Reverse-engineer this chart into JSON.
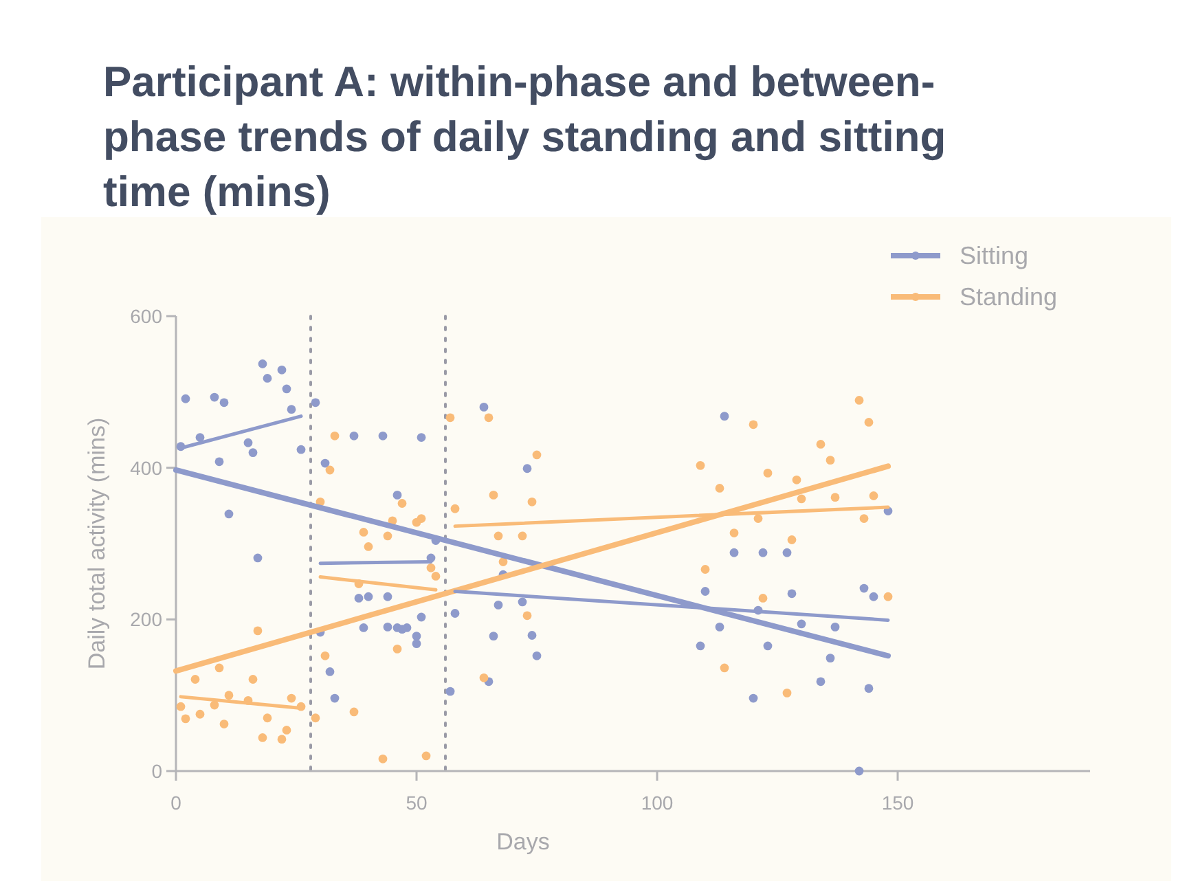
{
  "chart_data": {
    "type": "scatter",
    "title": "Participant A: within-phase and between-phase trends of daily standing and sitting time (mins)",
    "xlabel": "Days",
    "ylabel": "Daily total activity (mins)",
    "xlim": [
      0,
      190
    ],
    "ylim": [
      0,
      600
    ],
    "xticks": [
      0,
      50,
      100,
      150
    ],
    "yticks": [
      0,
      200,
      400,
      600
    ],
    "grid": false,
    "legend": "top right",
    "series": [
      {
        "name": "Sitting",
        "color": "#8e9acb",
        "marker": "circle",
        "x": [
          1,
          2,
          5,
          8,
          10,
          9,
          11,
          15,
          16,
          17,
          18,
          19,
          22,
          23,
          24,
          26,
          29,
          31,
          30,
          32,
          33,
          37,
          38,
          40,
          39,
          43,
          44,
          44,
          46,
          48,
          50,
          46,
          51,
          53,
          54,
          51,
          47,
          50,
          58,
          57,
          64,
          73,
          68,
          67,
          72,
          66,
          74,
          75,
          65,
          114,
          116,
          122,
          127,
          110,
          128,
          121,
          113,
          130,
          137,
          109,
          123,
          136,
          134,
          120,
          144,
          143,
          145,
          148,
          142
        ],
        "values": [
          428,
          491,
          440,
          493,
          486,
          408,
          339,
          433,
          420,
          281,
          537,
          518,
          529,
          504,
          477,
          424,
          486,
          406,
          183,
          131,
          96,
          442,
          228,
          230,
          189,
          442,
          230,
          190,
          189,
          189,
          178,
          364,
          440,
          281,
          304,
          203,
          187,
          168,
          208,
          105,
          480,
          399,
          259,
          219,
          223,
          178,
          179,
          152,
          118,
          468,
          288,
          288,
          288,
          237,
          234,
          212,
          190,
          194,
          190,
          165,
          165,
          149,
          118,
          96,
          109,
          241,
          230,
          343,
          0
        ]
      },
      {
        "name": "Standing",
        "color": "#f9bb78",
        "marker": "circle",
        "x": [
          1,
          2,
          4,
          5,
          8,
          9,
          10,
          11,
          15,
          16,
          17,
          18,
          19,
          22,
          23,
          24,
          26,
          29,
          31,
          33,
          32,
          30,
          37,
          39,
          40,
          38,
          43,
          44,
          45,
          46,
          47,
          50,
          51,
          52,
          53,
          54,
          57,
          58,
          65,
          66,
          67,
          68,
          72,
          74,
          75,
          73,
          64,
          109,
          113,
          110,
          120,
          116,
          121,
          123,
          122,
          114,
          129,
          130,
          128,
          127,
          134,
          136,
          137,
          142,
          144,
          145,
          143,
          148
        ],
        "values": [
          85,
          69,
          121,
          75,
          87,
          136,
          62,
          100,
          93,
          121,
          185,
          44,
          70,
          42,
          54,
          96,
          85,
          70,
          152,
          442,
          397,
          355,
          78,
          315,
          296,
          247,
          16,
          310,
          330,
          161,
          353,
          328,
          333,
          20,
          268,
          257,
          466,
          346,
          466,
          364,
          310,
          276,
          310,
          355,
          417,
          205,
          123,
          403,
          373,
          266,
          457,
          314,
          333,
          393,
          228,
          136,
          384,
          359,
          305,
          103,
          431,
          410,
          361,
          489,
          460,
          363,
          333,
          230
        ]
      },
      {
        "color": "#8e9acb",
        "type": "line",
        "x": [
          0,
          148
        ],
        "values": [
          397,
          152
        ]
      },
      {
        "color": "#f9bb78",
        "type": "line",
        "x": [
          0,
          148
        ],
        "values": [
          132,
          402
        ]
      },
      {
        "color": "#8e9acb",
        "type": "line",
        "x": [
          1,
          26
        ],
        "values": [
          426,
          468
        ]
      },
      {
        "color": "#f9bb78",
        "type": "line",
        "x": [
          1,
          26
        ],
        "values": [
          98,
          83
        ]
      },
      {
        "color": "#8e9acb",
        "type": "line",
        "x": [
          30,
          53
        ],
        "values": [
          274,
          276
        ]
      },
      {
        "color": "#f9bb78",
        "type": "line",
        "x": [
          30,
          54
        ],
        "values": [
          256,
          239
        ]
      },
      {
        "color": "#8e9acb",
        "type": "line",
        "x": [
          58,
          148
        ],
        "values": [
          237,
          199
        ]
      },
      {
        "color": "#f9bb78",
        "type": "line",
        "x": [
          58,
          148
        ],
        "values": [
          323,
          348
        ]
      }
    ],
    "ref_lines": [
      {
        "axis": "x",
        "value": 28,
        "color": "#9a9aa6",
        "line_style": "dotted"
      },
      {
        "axis": "x",
        "value": 56,
        "color": "#9a9aa6",
        "line_style": "dotted"
      }
    ]
  }
}
